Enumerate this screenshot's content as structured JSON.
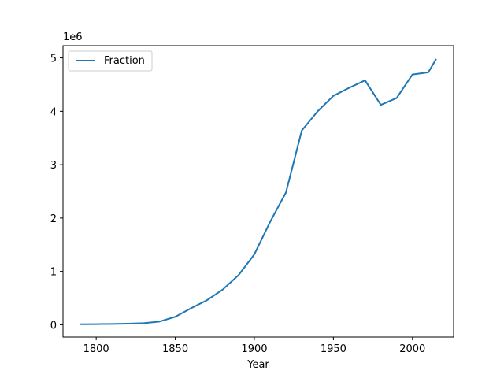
{
  "chart_data": {
    "type": "line",
    "xlabel": "Year",
    "ylabel": "",
    "y_offset_label": "1e6",
    "y_multiplier": 1000000,
    "xlim": [
      1779,
      2026
    ],
    "ylim": [
      -230000,
      5230000
    ],
    "x_ticks": [
      1800,
      1850,
      1900,
      1950,
      2000
    ],
    "y_ticks": [
      0,
      1,
      2,
      3,
      4,
      5
    ],
    "legend": {
      "position": "upper-left"
    },
    "grid": false,
    "series": [
      {
        "name": "Fraction",
        "color": "#1f77b4",
        "x": [
          1790,
          1800,
          1810,
          1820,
          1830,
          1840,
          1850,
          1860,
          1870,
          1880,
          1890,
          1900,
          1910,
          1920,
          1930,
          1940,
          1950,
          1960,
          1970,
          1980,
          1990,
          2000,
          2010,
          2015
        ],
        "values": [
          10000,
          12000,
          15000,
          20000,
          30000,
          60000,
          150000,
          310000,
          460000,
          660000,
          930000,
          1320000,
          1930000,
          2480000,
          3640000,
          4000000,
          4290000,
          4440000,
          4580000,
          4120000,
          4250000,
          4690000,
          4730000,
          4980000
        ]
      }
    ]
  }
}
